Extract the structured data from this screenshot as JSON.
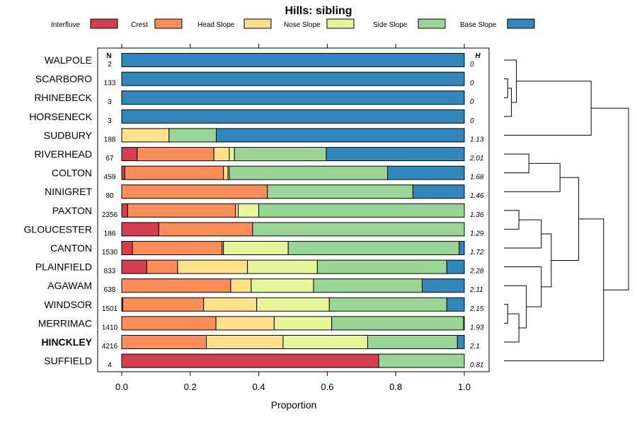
{
  "chart_data": {
    "type": "stacked-bar",
    "title": "Hills: sibling",
    "xlabel": "Proportion",
    "xlim": [
      0,
      1
    ],
    "x_ticks": [
      0.0,
      0.2,
      0.4,
      0.6,
      0.8,
      1.0
    ],
    "x_tick_labels": [
      "0.0",
      "0.2",
      "0.4",
      "0.6",
      "0.8",
      "1.0"
    ],
    "n_header": "N",
    "h_header": "H",
    "legend_position": "top",
    "series": [
      {
        "name": "Interfluve",
        "color": "#d53e4f"
      },
      {
        "name": "Crest",
        "color": "#fc8d59"
      },
      {
        "name": "Head Slope",
        "color": "#fee08b"
      },
      {
        "name": "Nose Slope",
        "color": "#e6f598"
      },
      {
        "name": "Side Slope",
        "color": "#99d594"
      },
      {
        "name": "Base Slope",
        "color": "#3288bd"
      }
    ],
    "rows": [
      {
        "label": "WALPOLE",
        "n": "2",
        "h": "0",
        "bold": false,
        "values": [
          0,
          0,
          0,
          0,
          0,
          1.0
        ]
      },
      {
        "label": "SCARBORO",
        "n": "133",
        "h": "0",
        "bold": false,
        "values": [
          0,
          0,
          0,
          0,
          0,
          1.0
        ]
      },
      {
        "label": "RHINEBECK",
        "n": "3",
        "h": "0",
        "bold": false,
        "values": [
          0,
          0,
          0,
          0,
          0,
          1.0
        ]
      },
      {
        "label": "HORSENECK",
        "n": "3",
        "h": "0",
        "bold": false,
        "values": [
          0,
          0,
          0,
          0,
          0,
          1.0
        ]
      },
      {
        "label": "SUDBURY",
        "n": "188",
        "h": "1.13",
        "bold": false,
        "values": [
          0,
          0,
          0.138,
          0,
          0.138,
          0.724
        ]
      },
      {
        "label": "RIVERHEAD",
        "n": "67",
        "h": "2.01",
        "bold": false,
        "values": [
          0.045,
          0.224,
          0.045,
          0.015,
          0.268,
          0.403
        ]
      },
      {
        "label": "COLTON",
        "n": "459",
        "h": "1.68",
        "bold": false,
        "values": [
          0.009,
          0.288,
          0.013,
          0.004,
          0.462,
          0.224
        ]
      },
      {
        "label": "NINIGRET",
        "n": "80",
        "h": "1.46",
        "bold": false,
        "values": [
          0,
          0.425,
          0,
          0,
          0.425,
          0.15
        ]
      },
      {
        "label": "PAXTON",
        "n": "2356",
        "h": "1.36",
        "bold": false,
        "values": [
          0.017,
          0.315,
          0.008,
          0.06,
          0.6,
          0
        ]
      },
      {
        "label": "GLOUCESTER",
        "n": "186",
        "h": "1.29",
        "bold": false,
        "values": [
          0.108,
          0.274,
          0,
          0,
          0.618,
          0
        ]
      },
      {
        "label": "CANTON",
        "n": "1530",
        "h": "1.72",
        "bold": false,
        "values": [
          0.031,
          0.262,
          0.004,
          0.189,
          0.499,
          0.015
        ]
      },
      {
        "label": "PLAINFIELD",
        "n": "833",
        "h": "2.28",
        "bold": false,
        "values": [
          0.073,
          0.09,
          0.204,
          0.204,
          0.378,
          0.051
        ]
      },
      {
        "label": "AGAWAM",
        "n": "638",
        "h": "2.11",
        "bold": false,
        "values": [
          0,
          0.318,
          0.06,
          0.182,
          0.317,
          0.123
        ]
      },
      {
        "label": "WINDSOR",
        "n": "1501",
        "h": "2.15",
        "bold": false,
        "values": [
          0.003,
          0.236,
          0.155,
          0.212,
          0.343,
          0.051
        ]
      },
      {
        "label": "MERRIMAC",
        "n": "1410",
        "h": "1.93",
        "bold": false,
        "values": [
          0,
          0.275,
          0.17,
          0.168,
          0.385,
          0.002
        ]
      },
      {
        "label": "HINCKLEY",
        "n": "4216",
        "h": "2.1",
        "bold": true,
        "values": [
          0,
          0.247,
          0.224,
          0.247,
          0.262,
          0.02
        ]
      },
      {
        "label": "SUFFIELD",
        "n": "4",
        "h": "0.81",
        "bold": false,
        "values": [
          0.75,
          0,
          0,
          0,
          0.25,
          0
        ]
      }
    ],
    "dendrogram": {
      "leaf_order": [
        "WALPOLE",
        "SCARBORO",
        "RHINEBECK",
        "HORSENECK",
        "SUDBURY",
        "RIVERHEAD",
        "COLTON",
        "NINIGRET",
        "PAXTON",
        "GLOUCESTER",
        "CANTON",
        "PLAINFIELD",
        "AGAWAM",
        "WINDSOR",
        "MERRIMAC",
        "HINCKLEY",
        "SUFFIELD"
      ],
      "merges": [
        {
          "a": 1,
          "b": 2,
          "height": 0.03
        },
        {
          "a": "m0",
          "b": 3,
          "height": 0.06
        },
        {
          "a": 0,
          "b": "m1",
          "height": 0.1
        },
        {
          "a": "m2",
          "b": 4,
          "height": 0.7
        },
        {
          "a": 5,
          "b": 6,
          "height": 0.2
        },
        {
          "a": "m4",
          "b": 7,
          "height": 0.45
        },
        {
          "a": 8,
          "b": 9,
          "height": 0.12
        },
        {
          "a": "m6",
          "b": 10,
          "height": 0.3
        },
        {
          "a": 13,
          "b": 14,
          "height": 0.03
        },
        {
          "a": "m8",
          "b": 15,
          "height": 0.12
        },
        {
          "a": 12,
          "b": "m9",
          "height": 0.18
        },
        {
          "a": 11,
          "b": "m10",
          "height": 0.3
        },
        {
          "a": "m7",
          "b": "m11",
          "height": 0.38
        },
        {
          "a": "m5",
          "b": "m12",
          "height": 0.6
        },
        {
          "a": "m13",
          "b": 16,
          "height": 0.8
        },
        {
          "a": "m3",
          "b": "m14",
          "height": 1.0
        }
      ]
    }
  }
}
